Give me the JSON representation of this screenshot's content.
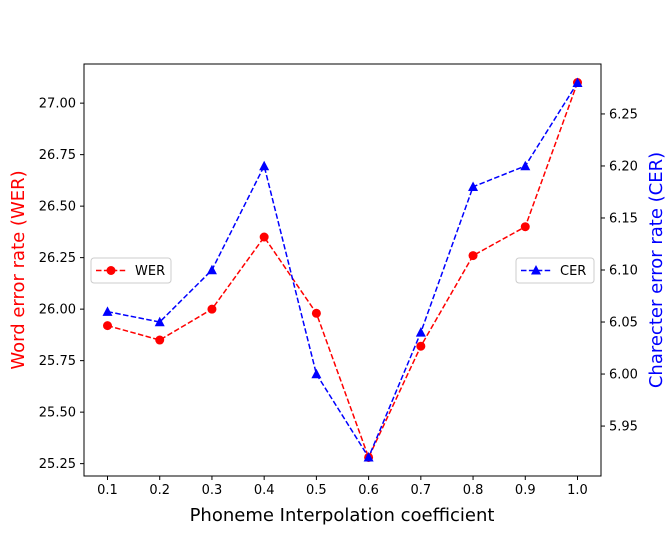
{
  "chart_data": {
    "type": "line",
    "title": "",
    "xlabel": "Phoneme Interpolation coefficient",
    "x": [
      0.1,
      0.2,
      0.3,
      0.4,
      0.5,
      0.6,
      0.7,
      0.8,
      0.9,
      1.0
    ],
    "xticks": [
      "0.1",
      "0.2",
      "0.3",
      "0.4",
      "0.5",
      "0.6",
      "0.7",
      "0.8",
      "0.9",
      "1.0"
    ],
    "xlim": [
      0.055,
      1.045
    ],
    "grid": false,
    "series": [
      {
        "name": "WER",
        "axis": "left",
        "color": "#ff0000",
        "marker": "circle",
        "linestyle": "dashed",
        "values": [
          25.92,
          25.85,
          26.0,
          26.35,
          25.98,
          25.28,
          25.82,
          26.26,
          26.4,
          27.1
        ],
        "legend_position": "center-left"
      },
      {
        "name": "CER",
        "axis": "right",
        "color": "#0000ff",
        "marker": "triangle",
        "linestyle": "dashed",
        "values": [
          6.06,
          6.05,
          6.1,
          6.2,
          6.0,
          5.92,
          6.04,
          6.18,
          6.2,
          6.28
        ],
        "legend_position": "center-right"
      }
    ],
    "y_left": {
      "label": "Word error rate (WER)",
      "color": "#ff0000",
      "ylim": [
        25.19,
        27.19
      ],
      "ticks": [
        "25.25",
        "25.50",
        "25.75",
        "26.00",
        "26.25",
        "26.50",
        "26.75",
        "27.00"
      ]
    },
    "y_right": {
      "label": "Charecter error rate (CER)",
      "color": "#0000ff",
      "ylim": [
        5.902,
        6.298
      ],
      "ticks": [
        "5.95",
        "6.00",
        "6.05",
        "6.10",
        "6.15",
        "6.20",
        "6.25"
      ]
    }
  }
}
